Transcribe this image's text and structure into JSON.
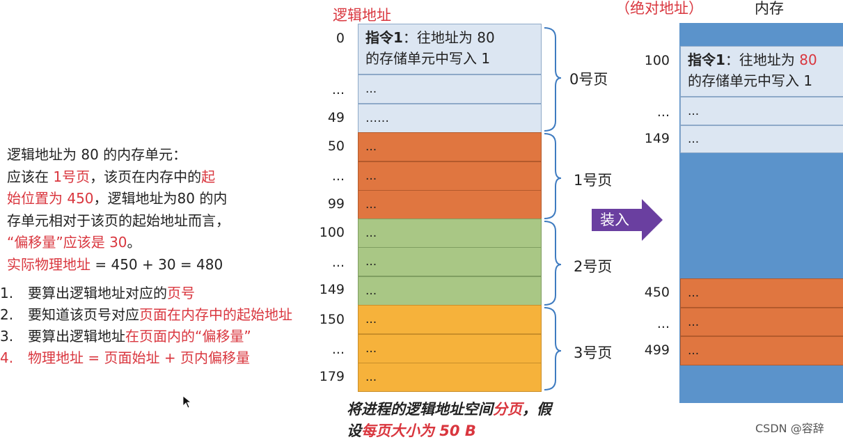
{
  "left": {
    "line1": "逻辑地址为 80 的内存单元：",
    "line2a": "应该在 ",
    "line2b": "1号页",
    "line2c": "，该页在内存中的",
    "line2d": "起",
    "line3a": "始位置为 450",
    "line3b": "，逻辑地址为80 的内",
    "line4": "存单元相对于该页的起始地址而言，",
    "line5a": "“偏移量”应该是 30",
    "line5b": "。",
    "line6a": "实际物理地址",
    "line6b": " = 450 + 30 = 480"
  },
  "steps": [
    {
      "num": "1.",
      "a": "要算出逻辑地址对应的",
      "b": "页号"
    },
    {
      "num": "2.",
      "a": "要知道该页号对应",
      "b": "页面在内存中的起始地址"
    },
    {
      "num": "3.",
      "a": "要算出逻辑地址",
      "b": "在页面内的“偏移量”"
    },
    {
      "num": "4.",
      "a": "物理地址 = 页面始址 + 页内偏移量",
      "b": ""
    }
  ],
  "logical": {
    "title": "逻辑地址",
    "addresses": [
      "0",
      "...",
      "49",
      "50",
      "...",
      "99",
      "100",
      "...",
      "149",
      "150",
      "...",
      "179"
    ],
    "instr_bold": "指令1",
    "instr_rest": "：往地址为 80",
    "instr_line2": "的存储单元中写入 1",
    "cells": [
      "...",
      "……",
      "...",
      "...",
      "...",
      "...",
      "...",
      "...",
      "...",
      "...",
      "..."
    ],
    "pages": [
      "0号页",
      "1号页",
      "2号页",
      "3号页"
    ]
  },
  "arrow_label": "装入",
  "caption": {
    "a": "将进程的逻辑地址空间",
    "b": "分页",
    "c": "，假设",
    "d": "每页大小为 50 B"
  },
  "memory": {
    "abs_title": "（绝对地址）",
    "title": "内存",
    "addresses": [
      "100",
      "...",
      "149",
      "450",
      "...",
      "499"
    ],
    "instr_bold": "指令1",
    "instr_rest": "：往地址为 ",
    "instr_red": "80",
    "instr_line2": "的存储单元中写入 1",
    "cells": [
      "...",
      "...",
      "...",
      "...",
      "..."
    ]
  },
  "watermark": "CSDN @容辞",
  "colors": {
    "red": "#d9363e",
    "blue_cell": "#dce6f2",
    "orange": "#e07640",
    "green": "#a9c785",
    "yellow": "#f6b23b",
    "memory_blue": "#5b93cb",
    "arrow": "#6a3fa0"
  }
}
